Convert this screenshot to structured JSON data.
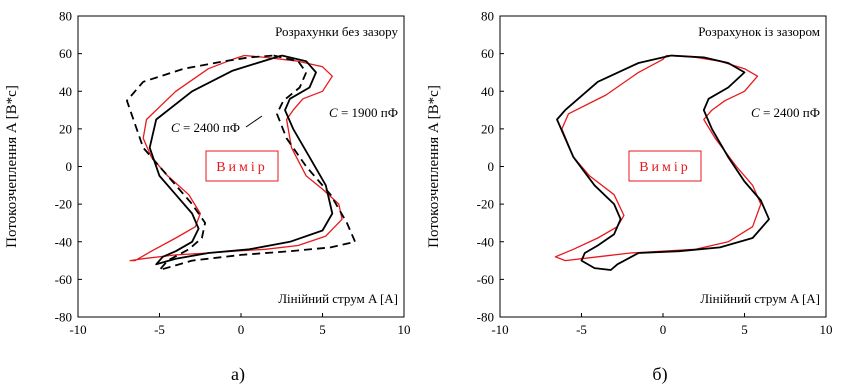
{
  "chart_data": [
    {
      "type": "line",
      "panel_label": "а)",
      "ylabel": "Потокозчеплення A [В*с]",
      "xlabel_inside": "Лінійний струм A [A]",
      "title_inside": "Розрахунки без зазору",
      "measure_label": "Вимір",
      "annotations": [
        "C = 2400 пФ",
        "C = 1900 пФ"
      ],
      "xlim": [
        -10,
        10
      ],
      "ylim": [
        -80,
        80
      ],
      "xticks": [
        "-10",
        "-5",
        "0",
        "5",
        "10"
      ],
      "yticks": [
        "80",
        "60",
        "40",
        "20",
        "0",
        "-20",
        "-40",
        "-60",
        "-80"
      ],
      "grid": false,
      "series": [
        {
          "color": "#e8191d",
          "dash": "solid",
          "x": [
            0.2,
            1.5,
            3.5,
            5.0,
            5.6,
            5.0,
            3.8,
            3.2,
            2.8,
            3.1,
            4.0,
            5.0,
            6.0,
            6.2,
            5.2,
            3.5,
            1.5,
            -0.5,
            -2.0,
            -4.0,
            -6.0,
            -6.8,
            -6.5,
            -5.5,
            -4.0,
            -2.8,
            -2.5,
            -3.2,
            -4.5,
            -5.5,
            -6.0,
            -5.8,
            -4.0,
            -2.0,
            -0.5,
            0.2
          ],
          "y": [
            59,
            58,
            56,
            53,
            48,
            40,
            36,
            30,
            25,
            10,
            -5,
            -12,
            -20,
            -28,
            -37,
            -42,
            -44,
            -45,
            -46,
            -47,
            -49,
            -50,
            -50,
            -45,
            -38,
            -32,
            -25,
            -15,
            -5,
            5,
            15,
            25,
            40,
            52,
            57,
            59
          ]
        },
        {
          "color": "#000000",
          "dash": "solid",
          "x": [
            2.5,
            4.0,
            4.6,
            4.2,
            3.0,
            2.7,
            3.2,
            4.2,
            5.2,
            5.6,
            5.0,
            3.0,
            0.5,
            -2.0,
            -4.0,
            -5.2,
            -4.8,
            -4.0,
            -3.0,
            -2.6,
            -3.0,
            -4.0,
            -5.0,
            -5.6,
            -5.2,
            -3.0,
            -0.5,
            1.0,
            2.5
          ],
          "y": [
            59,
            56,
            50,
            42,
            36,
            30,
            20,
            5,
            -10,
            -25,
            -34,
            -40,
            -44,
            -46,
            -49,
            -52,
            -48,
            -45,
            -40,
            -33,
            -25,
            -15,
            -5,
            10,
            25,
            40,
            51,
            55,
            59
          ]
        },
        {
          "color": "#000000",
          "dash": "dashed",
          "x": [
            2.0,
            3.5,
            4.0,
            3.6,
            2.6,
            2.2,
            2.8,
            4.0,
            5.5,
            6.5,
            7.0,
            5.5,
            3.0,
            0.0,
            -3.0,
            -5.0,
            -4.5,
            -3.2,
            -2.4,
            -2.2,
            -3.0,
            -4.5,
            -6.0,
            -7.0,
            -6.0,
            -3.5,
            -1.0,
            0.5,
            2.0
          ],
          "y": [
            59,
            56,
            50,
            42,
            35,
            28,
            15,
            0,
            -15,
            -30,
            -40,
            -43,
            -45,
            -47,
            -50,
            -55,
            -50,
            -44,
            -38,
            -30,
            -20,
            -5,
            10,
            35,
            45,
            52,
            56,
            58,
            59
          ]
        }
      ]
    },
    {
      "type": "line",
      "panel_label": "б)",
      "ylabel": "Потокозчеплення A [В*с]",
      "xlabel_inside": "Лінійний струм A [A]",
      "title_inside": "Розрахунок із зазором",
      "measure_label": "Вимір",
      "annotations": [
        "C = 2400 пФ"
      ],
      "xlim": [
        -10,
        10
      ],
      "ylim": [
        -80,
        80
      ],
      "xticks": [
        "-10",
        "-5",
        "0",
        "5",
        "10"
      ],
      "yticks": [
        "80",
        "60",
        "40",
        "20",
        "0",
        "-20",
        "-40",
        "-60",
        "-80"
      ],
      "grid": false,
      "series": [
        {
          "color": "#e8191d",
          "dash": "solid",
          "x": [
            0.2,
            2.0,
            3.5,
            5.0,
            5.8,
            5.0,
            3.8,
            3.0,
            2.5,
            3.2,
            4.5,
            5.5,
            6.0,
            5.5,
            4.0,
            2.0,
            0.0,
            -2.0,
            -4.0,
            -6.0,
            -6.6,
            -5.5,
            -4.0,
            -2.8,
            -2.4,
            -3.0,
            -4.5,
            -5.5,
            -6.2,
            -5.8,
            -3.5,
            -1.5,
            0.0,
            0.2
          ],
          "y": [
            59,
            58,
            56,
            52,
            48,
            40,
            35,
            30,
            25,
            15,
            0,
            -10,
            -20,
            -32,
            -40,
            -44,
            -45,
            -46,
            -48,
            -50,
            -48,
            -44,
            -38,
            -32,
            -26,
            -15,
            -5,
            5,
            20,
            28,
            38,
            50,
            57,
            59
          ]
        },
        {
          "color": "#000000",
          "dash": "solid",
          "x": [
            0.5,
            2.5,
            4.0,
            5.0,
            4.0,
            2.8,
            2.5,
            3.0,
            4.0,
            5.0,
            6.0,
            6.5,
            5.5,
            3.5,
            1.0,
            -1.5,
            -2.8,
            -3.2,
            -4.2,
            -5.0,
            -4.8,
            -4.0,
            -3.0,
            -2.6,
            -3.0,
            -4.2,
            -5.5,
            -6.5,
            -6.0,
            -4.0,
            -1.5,
            0.5
          ],
          "y": [
            59,
            58,
            55,
            50,
            42,
            36,
            30,
            20,
            5,
            -8,
            -18,
            -28,
            -38,
            -43,
            -45,
            -46,
            -52,
            -55,
            -54,
            -50,
            -46,
            -42,
            -36,
            -28,
            -20,
            -10,
            5,
            25,
            30,
            45,
            55,
            59
          ]
        }
      ]
    }
  ]
}
